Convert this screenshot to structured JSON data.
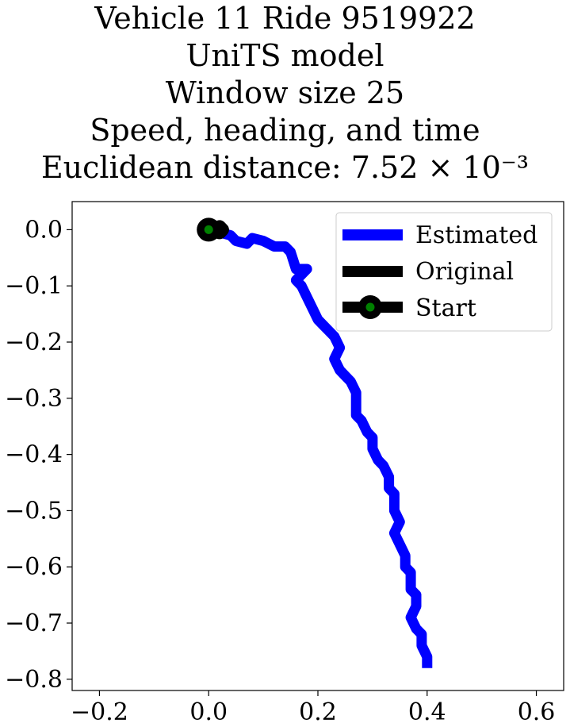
{
  "chart_data": {
    "type": "line",
    "title_lines": [
      "Vehicle 11 Ride 9519922",
      "UniTS model",
      "Window size 25",
      "Speed, heading, and time",
      "Euclidean distance: 7.52 × 10⁻³"
    ],
    "xlabel": "",
    "ylabel": "",
    "xlim": [
      -0.25,
      0.65
    ],
    "ylim": [
      -0.82,
      0.05
    ],
    "xticks": [
      -0.2,
      0.0,
      0.2,
      0.4,
      0.6
    ],
    "xtick_labels": [
      "−0.2",
      "0.0",
      "0.2",
      "0.4",
      "0.6"
    ],
    "yticks": [
      0.0,
      -0.1,
      -0.2,
      -0.3,
      -0.4,
      -0.5,
      -0.6,
      -0.7,
      -0.8
    ],
    "ytick_labels": [
      "0.0",
      "−0.1",
      "−0.2",
      "−0.3",
      "−0.4",
      "−0.5",
      "−0.6",
      "−0.7",
      "−0.8"
    ],
    "grid": false,
    "legend_position": "top-right",
    "series": [
      {
        "name": "Estimated",
        "color": "#0000ff",
        "x": [
          0.0,
          0.02,
          0.04,
          0.05,
          0.07,
          0.08,
          0.1,
          0.12,
          0.14,
          0.15,
          0.16,
          0.18,
          0.16,
          0.17,
          0.18,
          0.19,
          0.2,
          0.21,
          0.22,
          0.23,
          0.24,
          0.23,
          0.24,
          0.25,
          0.26,
          0.27,
          0.27,
          0.27,
          0.28,
          0.29,
          0.3,
          0.3,
          0.31,
          0.32,
          0.33,
          0.33,
          0.34,
          0.34,
          0.35,
          0.34,
          0.35,
          0.36,
          0.36,
          0.37,
          0.37,
          0.37,
          0.38,
          0.38,
          0.37,
          0.38,
          0.39,
          0.39,
          0.4,
          0.4
        ],
        "y": [
          0.0,
          -0.005,
          -0.01,
          -0.02,
          -0.025,
          -0.015,
          -0.02,
          -0.03,
          -0.03,
          -0.04,
          -0.07,
          -0.07,
          -0.09,
          -0.1,
          -0.12,
          -0.14,
          -0.16,
          -0.17,
          -0.18,
          -0.19,
          -0.21,
          -0.23,
          -0.25,
          -0.26,
          -0.27,
          -0.29,
          -0.31,
          -0.33,
          -0.34,
          -0.36,
          -0.37,
          -0.39,
          -0.41,
          -0.42,
          -0.44,
          -0.46,
          -0.47,
          -0.5,
          -0.52,
          -0.54,
          -0.56,
          -0.58,
          -0.6,
          -0.61,
          -0.62,
          -0.64,
          -0.65,
          -0.67,
          -0.69,
          -0.71,
          -0.72,
          -0.74,
          -0.76,
          -0.78
        ]
      },
      {
        "name": "Original",
        "color": "#000000",
        "x": [
          0.0,
          0.005,
          0.01,
          0.015,
          0.02,
          0.025,
          0.02,
          0.01,
          0.0
        ],
        "y": [
          0.0,
          0.0,
          0.005,
          0.0,
          -0.005,
          0.0,
          0.005,
          -0.005,
          0.0
        ]
      }
    ],
    "start_point": {
      "name": "Start",
      "x": 0.0,
      "y": 0.0,
      "marker_color": "#008000",
      "edge_color": "#000000"
    }
  }
}
